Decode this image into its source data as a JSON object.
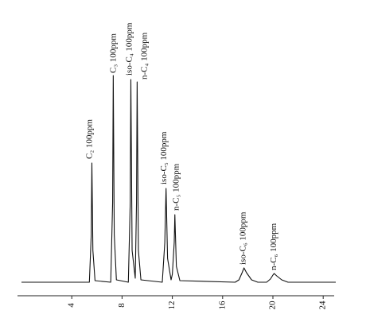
{
  "chart_data": {
    "type": "line",
    "x": [
      0,
      5.4,
      5.55,
      5.6,
      5.68,
      5.85,
      7.1,
      7.25,
      7.3,
      7.38,
      7.55,
      8.5,
      8.65,
      8.7,
      8.8,
      9.05,
      9.15,
      9.2,
      9.3,
      9.5,
      11.2,
      11.4,
      11.5,
      11.62,
      11.9,
      12.0,
      12.15,
      12.2,
      12.32,
      12.6,
      17.0,
      17.3,
      17.55,
      17.7,
      17.9,
      18.3,
      18.8,
      19.5,
      19.8,
      20.0,
      20.1,
      20.3,
      20.7,
      21.2,
      25
    ],
    "series": [
      {
        "color": "#111111",
        "values": [
          0,
          0,
          60,
          150,
          40,
          2,
          0,
          100,
          260,
          60,
          3,
          0,
          100,
          255,
          40,
          5,
          100,
          252,
          40,
          3,
          0,
          50,
          118,
          30,
          3,
          10,
          50,
          85,
          20,
          2,
          0,
          3,
          12,
          18,
          12,
          3,
          0,
          0,
          4,
          9,
          11,
          8,
          3,
          0,
          0
        ]
      }
    ],
    "xlim": [
      0,
      25
    ],
    "xticks": [
      4,
      8,
      12,
      16,
      20,
      24
    ],
    "ylim": [
      0,
      300
    ],
    "annotations": [
      {
        "text": "C₂ 100ppm",
        "x": 5.45,
        "y": 155
      },
      {
        "text": "C₃ 100ppm",
        "x": 7.35,
        "y": 263
      },
      {
        "text": "iso-C₄ 100ppm",
        "x": 8.6,
        "y": 260
      },
      {
        "text": "n-C₄ 100ppm",
        "x": 9.8,
        "y": 255
      },
      {
        "text": "iso-C₅ 100ppm",
        "x": 11.35,
        "y": 123
      },
      {
        "text": "n-C₅ 100ppm",
        "x": 12.35,
        "y": 90
      },
      {
        "text": "iso-C₆ 100ppm",
        "x": 17.65,
        "y": 22
      },
      {
        "text": "n-C₆ 100ppm",
        "x": 20.1,
        "y": 15
      }
    ]
  }
}
